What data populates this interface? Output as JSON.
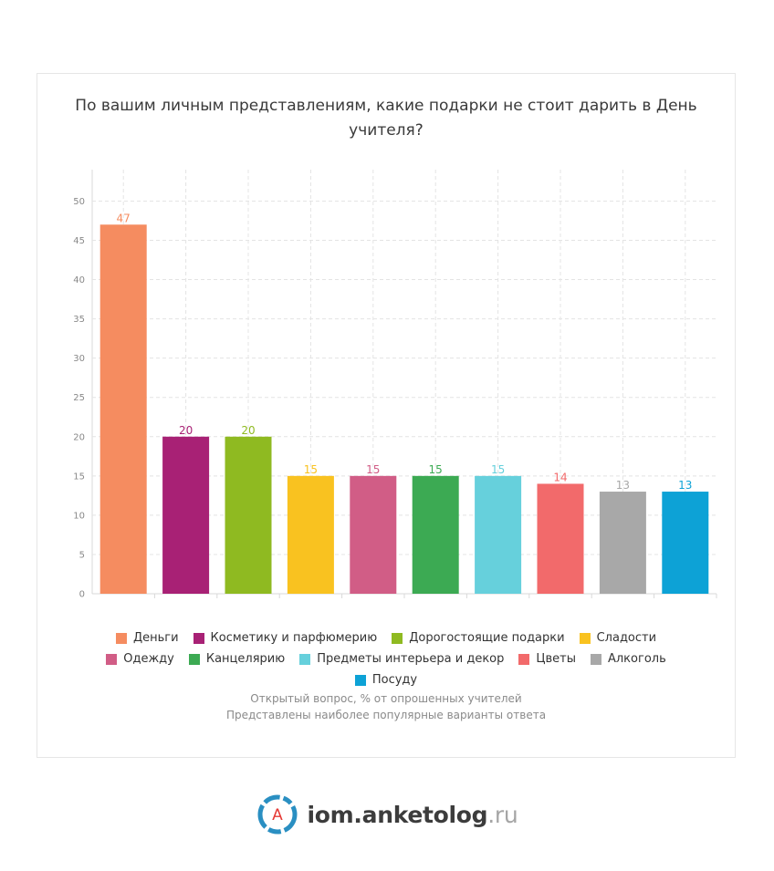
{
  "chart_data": {
    "type": "bar",
    "title": "По вашим личным представлениям, какие подарки не стоит дарить в День учителя?",
    "categories": [
      "Деньги",
      "Косметику и парфюмерию",
      "Дорогостоящие подарки",
      "Сладости",
      "Одежду",
      "Канцелярию",
      "Предметы интерьера и декор",
      "Цветы",
      "Алкоголь",
      "Посуду"
    ],
    "values": [
      47,
      20,
      20,
      15,
      15,
      15,
      15,
      14,
      13,
      13
    ],
    "colors": [
      "#f58c60",
      "#a82175",
      "#8fba21",
      "#f9c220",
      "#d15d86",
      "#3caa53",
      "#66d0dc",
      "#f26a6b",
      "#a8a8a8",
      "#0da2d6"
    ],
    "yticks": [
      0,
      5,
      10,
      15,
      20,
      25,
      30,
      35,
      40,
      45,
      50
    ],
    "ylim": [
      0,
      54
    ],
    "xlabel": "",
    "ylabel": "",
    "grid": true,
    "legend_position": "bottom"
  },
  "notes": {
    "line1": "Открытый вопрос, % от опрошенных учителей",
    "line2": "Представлены наиболее популярные варианты ответа"
  },
  "brand": {
    "logo_letter": "A",
    "name": "iom.anketolog",
    "tld": ".ru"
  }
}
